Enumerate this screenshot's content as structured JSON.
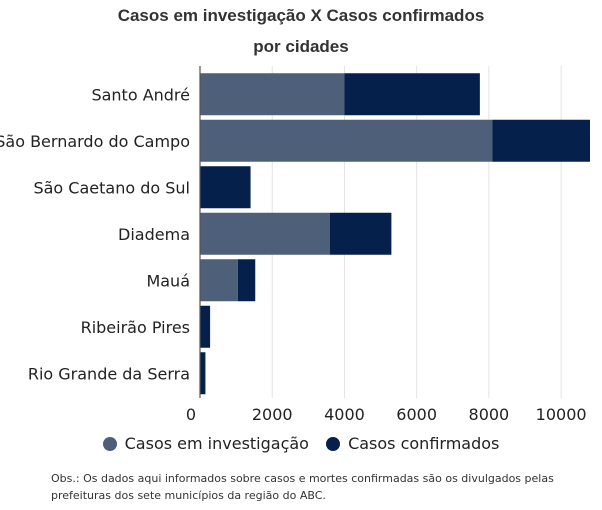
{
  "chart_data": {
    "type": "bar",
    "orientation": "horizontal",
    "stacked": true,
    "title": "Casos em investigação X Casos confirmados",
    "title_line2": "por cidades",
    "categories": [
      "Santo André",
      "São Bernardo do Campo",
      "São Caetano do Sul",
      "Diadema",
      "Mauá",
      "Ribeirão Pires",
      "Rio Grande da Serra"
    ],
    "series": [
      {
        "name": "Casos em investigação",
        "color": "#4e6079",
        "values": [
          4000,
          8100,
          0,
          3600,
          1050,
          0,
          0
        ]
      },
      {
        "name": "Casos confirmados",
        "color": "#05204a",
        "values": [
          3750,
          2700,
          1400,
          1700,
          480,
          280,
          150
        ]
      }
    ],
    "xlim": [
      0,
      10800
    ],
    "xticks": [
      0,
      2000,
      4000,
      6000,
      8000,
      10000
    ],
    "grid": true,
    "legend_position": "bottom"
  },
  "note": "Obs.: Os dados aqui informados sobre casos e mortes confirmadas são os divulgados pelas prefeituras dos sete municípios da região do ABC."
}
